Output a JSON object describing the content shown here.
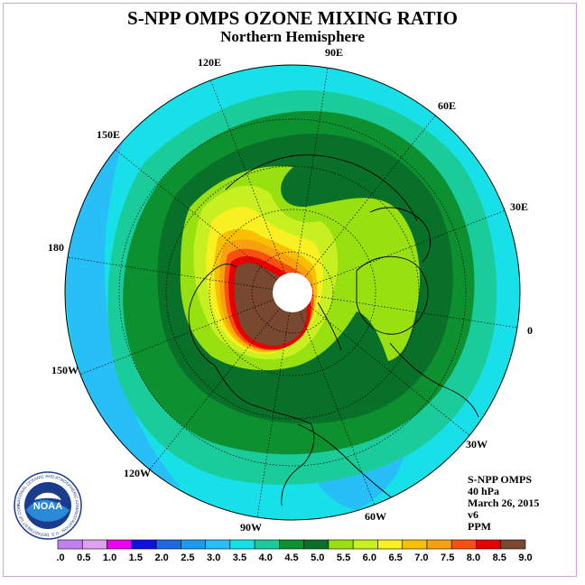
{
  "title": "S-NPP OMPS OZONE MIXING RATIO",
  "subtitle": "Northern Hemisphere",
  "longitude_labels": [
    "90E",
    "60E",
    "30E",
    "0",
    "30W",
    "60W",
    "90W",
    "120W",
    "150W",
    "180",
    "150E",
    "120E"
  ],
  "info": {
    "instrument": "S-NPP OMPS",
    "level": "40 hPa",
    "date": "March 26, 2015",
    "version": "v6",
    "units": "PPM"
  },
  "logo": {
    "acronym": "NOAA",
    "ring_text": "NATIONAL OCEANIC AND ATMOSPHERIC ADMINISTRATION · U.S. DEPARTMENT OF COMMERCE"
  },
  "colorbar": {
    "ticks": [
      "0.0",
      "0.5",
      "1.0",
      "1.5",
      "2.0",
      "2.5",
      "3.0",
      "3.5",
      "4.0",
      "4.5",
      "5.0",
      "5.5",
      "6.0",
      "6.5",
      "7.0",
      "7.5",
      "8.0",
      "8.5",
      "9.0"
    ],
    "colors": [
      "#c080f0",
      "#e0a0f0",
      "#f000f0",
      "#1010e0",
      "#1e68e0",
      "#1a9af0",
      "#28bef8",
      "#18e0e8",
      "#1acc9a",
      "#0c9030",
      "#087028",
      "#98e010",
      "#c8f020",
      "#f8f020",
      "#f8c000",
      "#f8a010",
      "#f85010",
      "#e80000",
      "#784830"
    ]
  },
  "field_colors": {
    "c3_0": "#28bef8",
    "c3_5": "#18e0e8",
    "c4_0": "#1acc9a",
    "c4_5": "#0c9030",
    "c5_0": "#087028",
    "c5_5": "#98e010",
    "c6_0": "#c8f020",
    "c6_5": "#f8f020",
    "c7_0": "#f8c000",
    "c7_5": "#f8a010",
    "c8_0": "#f85010",
    "c8_5": "#e80000",
    "c9_0": "#784830"
  }
}
